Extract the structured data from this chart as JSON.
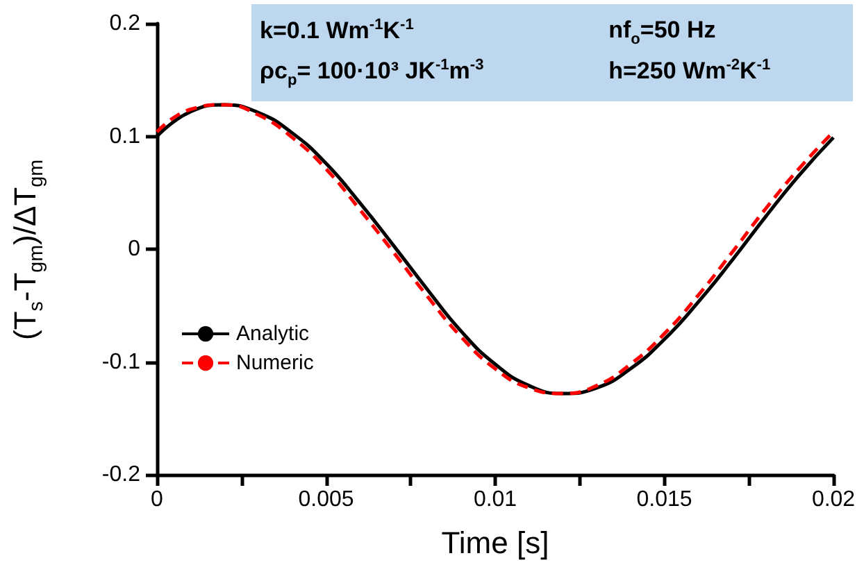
{
  "chart_data": {
    "type": "line",
    "xlabel": "Time [s]",
    "ylabel": "(T$_{s}$-T$_{gm}$)/ΔT$_{gm}$",
    "annotations": [
      "k=0.1 Wm$^{-1}$K$^{-1}$",
      "nf$_{o}$=50 Hz",
      "ρc$_{p}$= 100·10³ JK$^{-1}$m$^{-3}$",
      "h=250 Wm$^{-2}$K$^{-1}$"
    ],
    "x": [
      0,
      0.001,
      0.002,
      0.003,
      0.004,
      0.005,
      0.006,
      0.007,
      0.008,
      0.009,
      0.01,
      0.011,
      0.012,
      0.013,
      0.014,
      0.015,
      0.016,
      0.017,
      0.018,
      0.019,
      0.02
    ],
    "series": [
      {
        "name": "Analytic",
        "color": "#000000",
        "line_style": "solid",
        "values": [
          0.1,
          0.122,
          0.128,
          0.121,
          0.103,
          0.076,
          0.041,
          0.003,
          -0.036,
          -0.073,
          -0.102,
          -0.121,
          -0.128,
          -0.123,
          -0.106,
          -0.08,
          -0.047,
          -0.01,
          0.029,
          0.066,
          0.099
        ]
      },
      {
        "name": "Numeric",
        "color": "#ff0000",
        "line_style": "dashed",
        "values": [
          0.104,
          0.124,
          0.128,
          0.119,
          0.099,
          0.071,
          0.035,
          -0.003,
          -0.042,
          -0.078,
          -0.106,
          -0.123,
          -0.128,
          -0.121,
          -0.102,
          -0.075,
          -0.041,
          -0.003,
          0.036,
          0.072,
          0.104
        ]
      }
    ],
    "xlim": [
      0,
      0.02
    ],
    "xticks": [
      0,
      {
        "value": 0.0025,
        "label": null
      },
      0.005,
      {
        "value": 0.0075,
        "label": null
      },
      0.01,
      {
        "value": 0.0125,
        "label": null
      },
      0.015,
      {
        "value": 0.0175,
        "label": null
      },
      0.02
    ],
    "ylim": [
      -0.2,
      0.2
    ],
    "yticks": [
      -0.2,
      -0.1,
      0,
      0.1,
      0.2
    ],
    "grid": false,
    "legend": "bottom left",
    "marker": "none"
  }
}
